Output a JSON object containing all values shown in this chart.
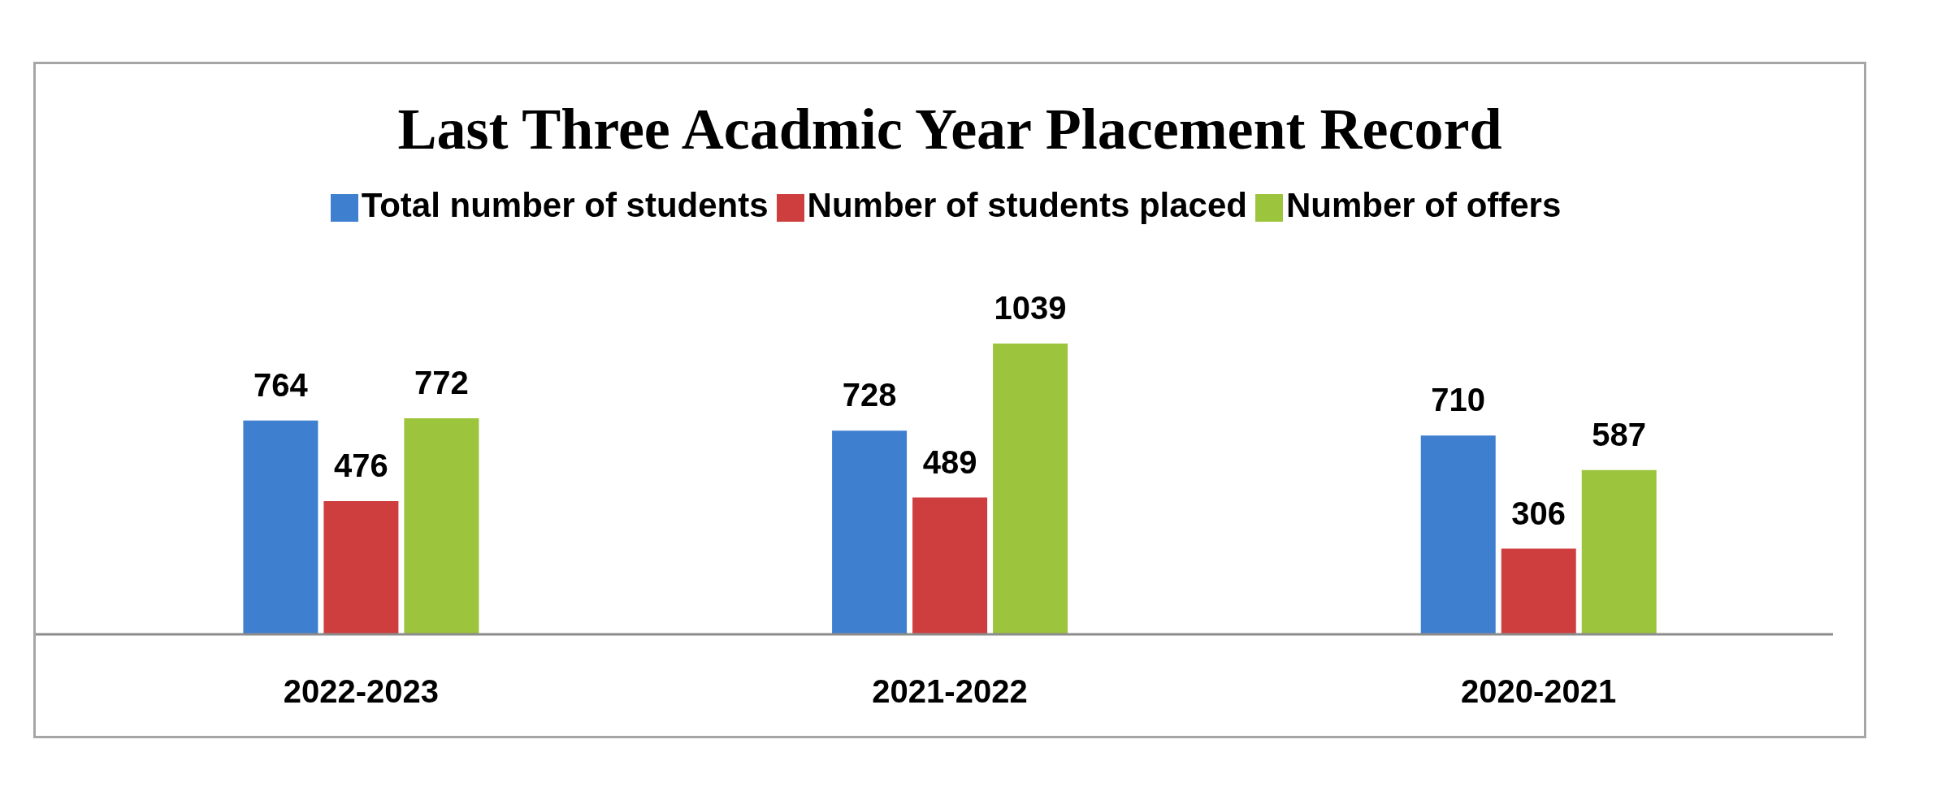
{
  "chart_data": {
    "type": "bar",
    "title": "Last Three Acadmic Year Placement Record",
    "categories": [
      "2022-2023",
      "2021-2022",
      "2020-2021"
    ],
    "series": [
      {
        "name": "Total number of students",
        "color": "#3f7fd0",
        "values": [
          764,
          728,
          710
        ]
      },
      {
        "name": "Number of students placed",
        "color": "#cf3e3e",
        "values": [
          476,
          489,
          306
        ]
      },
      {
        "name": "Number of offers",
        "color": "#9cc43c",
        "values": [
          772,
          1039,
          587
        ]
      }
    ],
    "data_labels": true,
    "legend": "top",
    "tick_labels": "x"
  }
}
